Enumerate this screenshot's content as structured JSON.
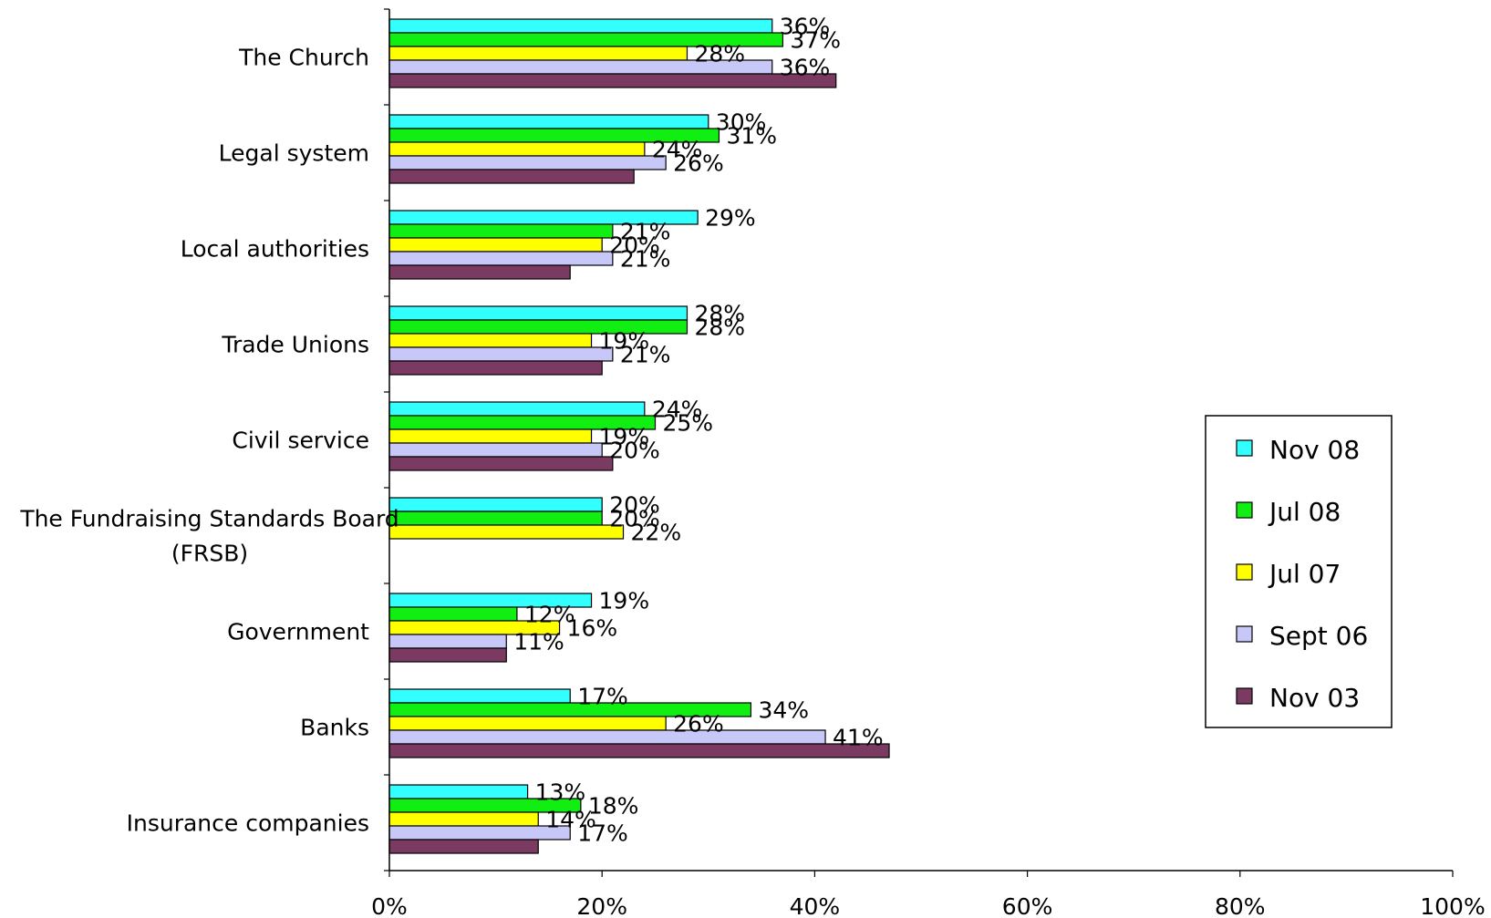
{
  "chart_data": {
    "type": "bar",
    "orientation": "horizontal",
    "categories": [
      "The Church",
      "Legal system",
      "Local authorities",
      "Trade Unions",
      "Civil service",
      "The Fundraising Standards Board (FRSB)",
      "Government",
      "Banks",
      "Insurance companies"
    ],
    "series": [
      {
        "name": "Nov 08",
        "color": "#33ffff",
        "values": [
          36,
          30,
          29,
          28,
          24,
          20,
          19,
          17,
          13
        ],
        "labels": [
          "36%",
          "30%",
          "29%",
          "28%",
          "24%",
          "20%",
          "19%",
          "17%",
          "13%"
        ]
      },
      {
        "name": "Jul 08",
        "color": "#11ee11",
        "values": [
          37,
          31,
          21,
          28,
          25,
          20,
          12,
          34,
          18
        ],
        "labels": [
          "37%",
          "31%",
          "21%",
          "28%",
          "25%",
          "20%",
          "12%",
          "34%",
          "18%"
        ]
      },
      {
        "name": "Jul 07",
        "color": "#ffff00",
        "values": [
          28,
          24,
          20,
          19,
          19,
          22,
          16,
          26,
          14
        ],
        "labels": [
          "28%",
          "24%",
          "20%",
          "19%",
          "19%",
          "22%",
          "16%",
          "26%",
          "14%"
        ]
      },
      {
        "name": "Sept 06",
        "color": "#c8c8f8",
        "values": [
          36,
          26,
          21,
          21,
          20,
          null,
          11,
          41,
          17
        ],
        "labels": [
          "36%",
          "26%",
          "21%",
          "21%",
          "20%",
          null,
          "11%",
          "41%",
          "17%"
        ]
      },
      {
        "name": "Nov 03",
        "color": "#7a3a62",
        "values": [
          42,
          23,
          17,
          20,
          21,
          null,
          11,
          47,
          14
        ],
        "labels": [
          null,
          null,
          null,
          null,
          null,
          null,
          null,
          null,
          null
        ]
      }
    ],
    "xlim": [
      0,
      100
    ],
    "x_ticks": [
      "0%",
      "20%",
      "40%",
      "60%",
      "80%",
      "100%"
    ],
    "legend_position": "right",
    "grid": false,
    "title": "",
    "xlabel": "",
    "ylabel": ""
  }
}
